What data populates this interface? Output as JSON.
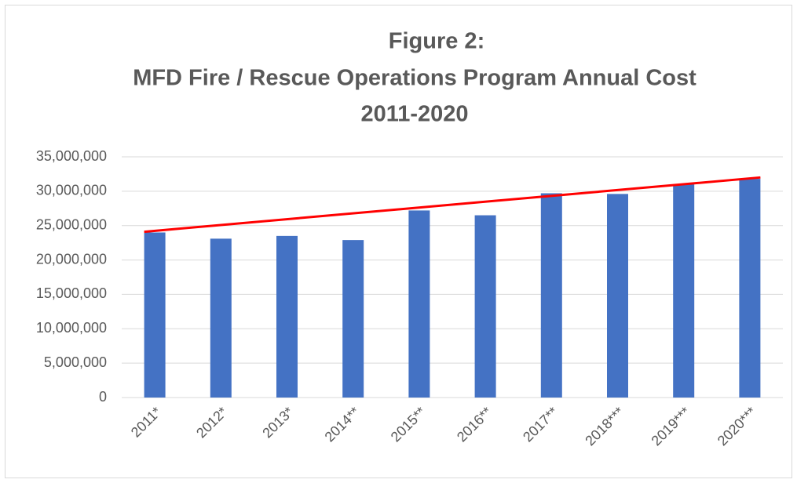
{
  "chart_data": {
    "type": "bar",
    "title": [
      "Figure 2:",
      "MFD Fire / Rescue Operations Program Annual Cost",
      "2011-2020"
    ],
    "categories": [
      "2011*",
      "2012*",
      "2013*",
      "2014**",
      "2015**",
      "2016**",
      "2017**",
      "2018***",
      "2019***",
      "2020***"
    ],
    "values": [
      24000000,
      23100000,
      23500000,
      22900000,
      27200000,
      26500000,
      29700000,
      29600000,
      31000000,
      31800000
    ],
    "color": "#4472c4",
    "trendline": {
      "color": "#ff0000",
      "values": [
        24100000,
        32000000
      ]
    },
    "ylim": [
      0,
      35000000
    ],
    "yticks": [
      {
        "value": 0,
        "label": "0"
      },
      {
        "value": 5000000,
        "label": "5,000,000"
      },
      {
        "value": 10000000,
        "label": "10,000,000"
      },
      {
        "value": 15000000,
        "label": "15,000,000"
      },
      {
        "value": 20000000,
        "label": "20,000,000"
      },
      {
        "value": 25000000,
        "label": "25,000,000"
      },
      {
        "value": 30000000,
        "label": "30,000,000"
      },
      {
        "value": 35000000,
        "label": "35,000,000"
      }
    ],
    "grid": true
  }
}
